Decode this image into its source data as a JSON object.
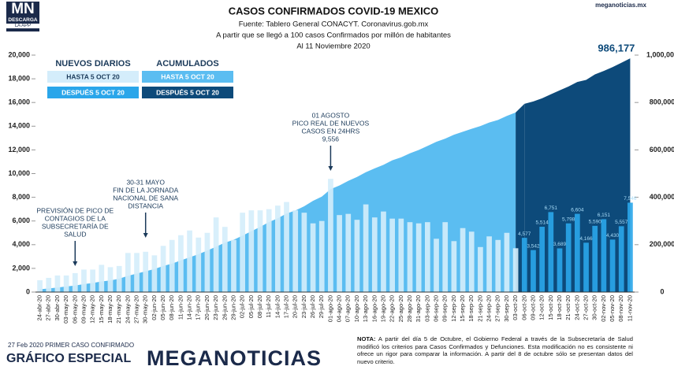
{
  "branding": {
    "logo": "MN",
    "download": "DESCARGA",
    "app": "LA APP",
    "site": "meganoticias.mx",
    "footer_left": "27 Feb 2020 PRIMER CASO CONFIRMADO",
    "special": "GRÁFICO ESPECIAL",
    "brand": "MEGANOTICIAS"
  },
  "note": {
    "label": "NOTA:",
    "text": "A partir del día 5 de Octubre, el Gobierno Federal a través de la Subsecretaría de Salud modificó los criterios para Casos Confirmados y Defunciones. Esta modificación no es consistente ni ofrece un rigor para comparar la información. A partir del 8 de octubre sólo se presentan datos del nuevo criterio."
  },
  "chart_data": {
    "type": "bar",
    "title": "CASOS CONFIRMADOS COVID-19 MEXICO",
    "subtitle": [
      "Fuente: Tablero General CONACYT. Coronavirus.gob.mx",
      "A partir que se llegó a 100 casos Confirmados por millón de habitantes",
      "Al 11 Noviembre 2020"
    ],
    "categories": [
      "24-abr-20",
      "27-abr-20",
      "30-abr-20",
      "03-may-20",
      "06-may-20",
      "09-may-20",
      "12-may-20",
      "15-may-20",
      "18-may-20",
      "21-may-20",
      "24-may-20",
      "27-may-20",
      "30-may-20",
      "02-jun-20",
      "05-jun-20",
      "08-jun-20",
      "11-jun-20",
      "14-jun-20",
      "17-jun-20",
      "20-jun-20",
      "23-jun-20",
      "26-jun-20",
      "29-jun-20",
      "02-jul-20",
      "05-jul-20",
      "08-jul-20",
      "11-jul-20",
      "14-jul-20",
      "17-jul-20",
      "20-jul-20",
      "23-jul-20",
      "26-jul-20",
      "29-jul-20",
      "01-ago-20",
      "04-ago-20",
      "07-ago-20",
      "10-ago-20",
      "13-ago-20",
      "16-ago-20",
      "19-ago-20",
      "22-ago-20",
      "25-ago-20",
      "28-ago-20",
      "31-ago-20",
      "03-sep-20",
      "06-sep-20",
      "09-sep-20",
      "12-sep-20",
      "15-sep-20",
      "18-sep-20",
      "21-sep-20",
      "24-sep-20",
      "27-sep-20",
      "30-sep-20",
      "03-oct-20",
      "06-oct-20",
      "09-oct-20",
      "12-oct-20",
      "15-oct-20",
      "18-oct-20",
      "21-oct-20",
      "24-oct-20",
      "27-oct-20",
      "30-oct-20",
      "02-nov-20",
      "05-nov-20",
      "08-nov-20",
      "11-nov-20"
    ],
    "legend_groups": [
      {
        "title": "NUEVOS DIARIOS",
        "axis": "y"
      },
      {
        "title": "ACUMULADOS",
        "axis": "y2"
      }
    ],
    "series": [
      {
        "name": "HASTA 5 OCT 20",
        "color": "#d4edfb",
        "axis": "y",
        "values": [
          1000,
          1200,
          1400,
          1400,
          1600,
          1900,
          1900,
          2300,
          2100,
          2200,
          3300,
          3300,
          3400,
          3100,
          3900,
          4400,
          4800,
          5200,
          4600,
          5000,
          6300,
          5500,
          4400,
          6700,
          6900,
          6900,
          7000,
          7300,
          7600,
          6900,
          6700,
          5800,
          6000,
          9556,
          6500,
          6600,
          6100,
          7400,
          6300,
          6800,
          6200,
          6200,
          5900,
          5800,
          5900,
          4500,
          5900,
          4300,
          5400,
          5100,
          3800,
          4700,
          4400,
          5000,
          3700,
          null,
          null,
          null,
          null,
          null,
          null,
          null,
          null,
          null,
          null,
          null,
          null,
          null
        ]
      },
      {
        "name": "DESPUÉS 5 OCT 20",
        "color": "#2aa6ea",
        "axis": "y",
        "values": [
          null,
          null,
          null,
          null,
          null,
          null,
          null,
          null,
          null,
          null,
          null,
          null,
          null,
          null,
          null,
          null,
          null,
          null,
          null,
          null,
          null,
          null,
          null,
          null,
          null,
          null,
          null,
          null,
          null,
          null,
          null,
          null,
          null,
          null,
          null,
          null,
          null,
          null,
          null,
          null,
          null,
          null,
          null,
          null,
          null,
          null,
          null,
          null,
          null,
          null,
          null,
          null,
          null,
          null,
          null,
          4577,
          3542,
          5514,
          6751,
          3689,
          5798,
          6604,
          4166,
          5590,
          6151,
          4430,
          5557,
          7546
        ],
        "value_labels": [
          null,
          null,
          null,
          null,
          null,
          null,
          null,
          null,
          null,
          null,
          null,
          null,
          null,
          null,
          null,
          null,
          null,
          null,
          null,
          null,
          null,
          null,
          null,
          null,
          null,
          null,
          null,
          null,
          null,
          null,
          null,
          null,
          null,
          null,
          null,
          null,
          null,
          null,
          null,
          null,
          null,
          null,
          null,
          null,
          null,
          null,
          null,
          null,
          null,
          null,
          null,
          null,
          null,
          null,
          null,
          "4,577",
          "3,542",
          "5,514",
          "6,751",
          "3,689",
          "5,798",
          "6,604",
          "4,166",
          "5,590",
          "6,151",
          "4,430",
          "5,557",
          "7,546"
        ]
      },
      {
        "name": "HASTA 5 OCT 20",
        "color": "#5bbdf1",
        "axis": "y2",
        "values": [
          11600,
          15500,
          19200,
          23500,
          27600,
          33500,
          38300,
          45000,
          49200,
          56600,
          68600,
          78000,
          87500,
          97300,
          110000,
          120100,
          133900,
          146800,
          159800,
          175200,
          191400,
          208400,
          220700,
          238500,
          256800,
          275000,
          295300,
          311500,
          331300,
          344200,
          362300,
          385000,
          402700,
          434200,
          449900,
          469400,
          485800,
          505800,
          522100,
          537000,
          556200,
          568600,
          585700,
          599600,
          616600,
          634000,
          647500,
          663900,
          676500,
          688900,
          700600,
          715500,
          726400,
          743200,
          757900,
          null,
          null,
          null,
          null,
          null,
          null,
          null,
          null,
          null,
          null,
          null,
          null,
          null
        ]
      },
      {
        "name": "DESPUÉS 5 OCT 20",
        "color": "#0d4a7a",
        "axis": "y2",
        "values": [
          null,
          null,
          null,
          null,
          null,
          null,
          null,
          null,
          null,
          null,
          null,
          null,
          null,
          null,
          null,
          null,
          null,
          null,
          null,
          null,
          null,
          null,
          null,
          null,
          null,
          null,
          null,
          null,
          null,
          null,
          null,
          null,
          null,
          null,
          null,
          null,
          null,
          null,
          null,
          null,
          null,
          null,
          null,
          null,
          null,
          null,
          null,
          null,
          null,
          null,
          null,
          null,
          null,
          null,
          null,
          794600,
          804500,
          817500,
          834900,
          851200,
          867600,
          886800,
          895300,
          918800,
          933200,
          949200,
          967800,
          986177
        ],
        "value_labels": [
          null,
          null,
          null,
          null,
          null,
          null,
          null,
          null,
          null,
          null,
          null,
          null,
          null,
          null,
          null,
          null,
          null,
          null,
          null,
          null,
          null,
          null,
          null,
          null,
          null,
          null,
          null,
          null,
          null,
          null,
          null,
          null,
          null,
          null,
          null,
          null,
          null,
          null,
          null,
          null,
          null,
          null,
          null,
          null,
          null,
          null,
          null,
          null,
          null,
          null,
          null,
          null,
          null,
          null,
          null,
          null,
          null,
          null,
          null,
          null,
          null,
          null,
          null,
          null,
          null,
          null,
          null,
          "986,177"
        ]
      }
    ],
    "ylim": [
      0,
      20000
    ],
    "yticks": [
      0,
      {
        "value": 2000,
        "label": "2,000"
      },
      {
        "value": 4000,
        "label": "4,000"
      },
      {
        "value": 6000,
        "label": "6,000"
      },
      {
        "value": 8000,
        "label": "8,000"
      },
      {
        "value": 10000,
        "label": "10,000"
      },
      {
        "value": 12000,
        "label": "12,000"
      },
      {
        "value": 14000,
        "label": "14,000"
      },
      {
        "value": 16000,
        "label": "16,000"
      },
      {
        "value": 18000,
        "label": "18,000"
      },
      {
        "value": 20000,
        "label": "20,000"
      }
    ],
    "y2lim": [
      0,
      1000000
    ],
    "y2ticks": [
      0,
      {
        "value": 200000,
        "label": "200,000"
      },
      {
        "value": 400000,
        "label": "400,000"
      },
      {
        "value": 600000,
        "label": "600,000"
      },
      {
        "value": 800000,
        "label": "800,000"
      },
      {
        "value": 1000000,
        "label": "1,000,000"
      }
    ],
    "annotations": [
      {
        "at": "06-may-20",
        "lines": [
          "PREVISIÓN DE PICO DE",
          "CONTAGIOS DE LA",
          "SUBSECRETARÍA DE",
          "SALUD"
        ]
      },
      {
        "at": "30-may-20",
        "lines": [
          "30-31 MAYO",
          "FIN DE LA JORNADA",
          "NACIONAL DE SANA",
          "DISTANCIA"
        ]
      },
      {
        "at": "01-ago-20",
        "lines": [
          "01 AGOSTO",
          "PICO REAL DE NUEVOS",
          "CASOS EN 24HRS",
          "9,556"
        ]
      }
    ]
  }
}
